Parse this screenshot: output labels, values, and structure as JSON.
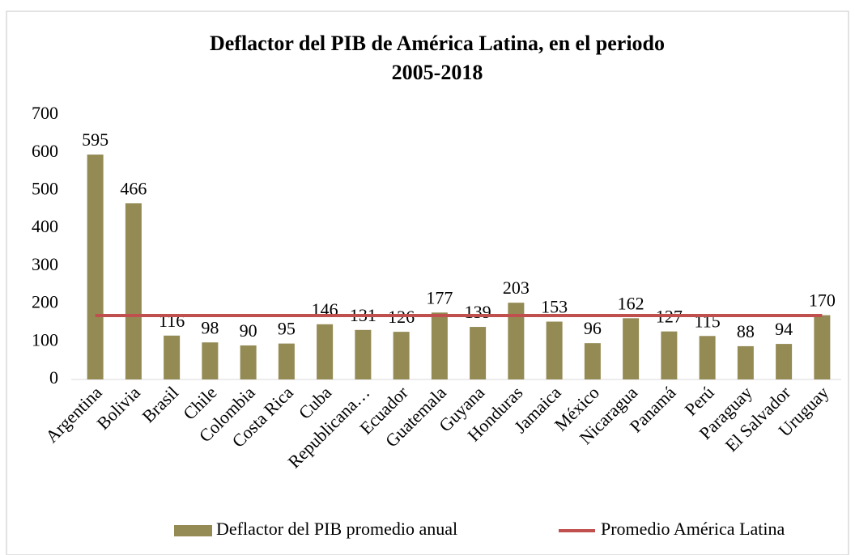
{
  "chart_data": {
    "type": "bar",
    "title": [
      "Deflactor del PIB de América Latina, en el  periodo",
      "2005-2018"
    ],
    "categories": [
      "Argentina",
      "Bolivia",
      "Brasil",
      "Chile",
      "Colombia",
      "Costa Rica",
      "Cuba",
      "Republicana…",
      "Ecuador",
      "Guatemala",
      "Guyana",
      "Honduras",
      "Jamaica",
      "México",
      "Nicaragua",
      "Panamá",
      "Perú",
      "Paraguay",
      "El Salvador",
      "Uruguay"
    ],
    "series": [
      {
        "name": "Deflactor del PIB  promedio anual",
        "type": "bar",
        "color": "#948a54",
        "values": [
          595,
          466,
          116,
          98,
          90,
          95,
          146,
          131,
          126,
          177,
          139,
          203,
          153,
          96,
          162,
          127,
          115,
          88,
          94,
          170
        ]
      },
      {
        "name": "Promedio América Latina",
        "type": "line",
        "color": "#c0504d",
        "values": [
          169,
          169,
          169,
          169,
          169,
          169,
          169,
          169,
          169,
          169,
          169,
          169,
          169,
          169,
          169,
          169,
          169,
          169,
          169,
          169
        ]
      }
    ],
    "ylim": [
      0,
      700
    ],
    "yticks": [
      0,
      100,
      200,
      300,
      400,
      500,
      600,
      700
    ],
    "grid": false,
    "legend": "bottom"
  }
}
